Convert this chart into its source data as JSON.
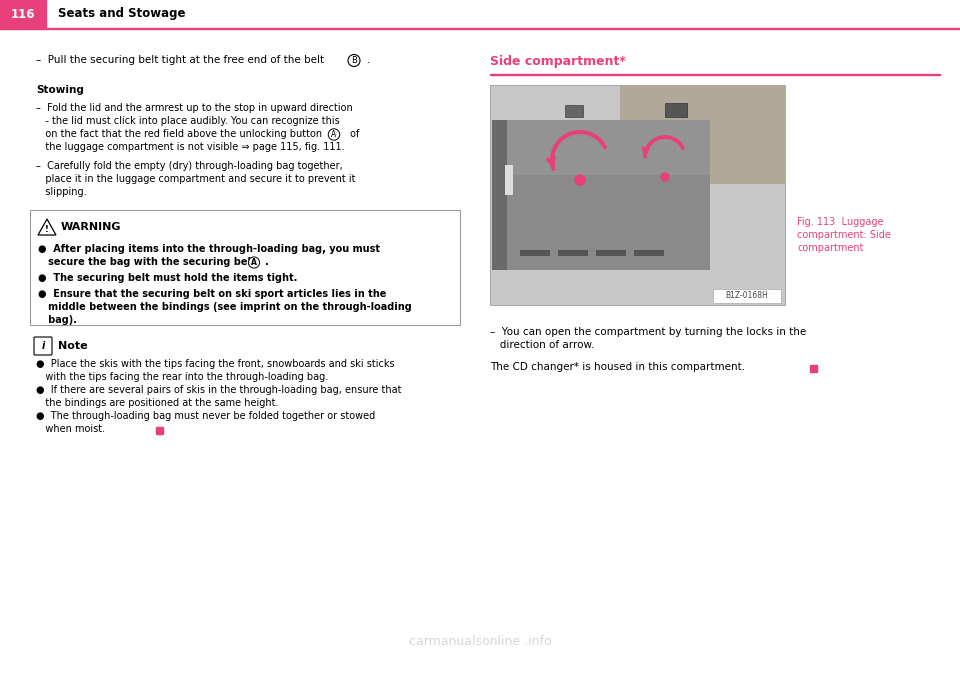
{
  "page_number": "116",
  "section_title": "Seats and Stowage",
  "pink_color": "#E8407A",
  "body_text_color": "#000000",
  "background_color": "#ffffff",
  "header_text_color": "#ffffff",
  "watermark": "carmanualsonline .info"
}
